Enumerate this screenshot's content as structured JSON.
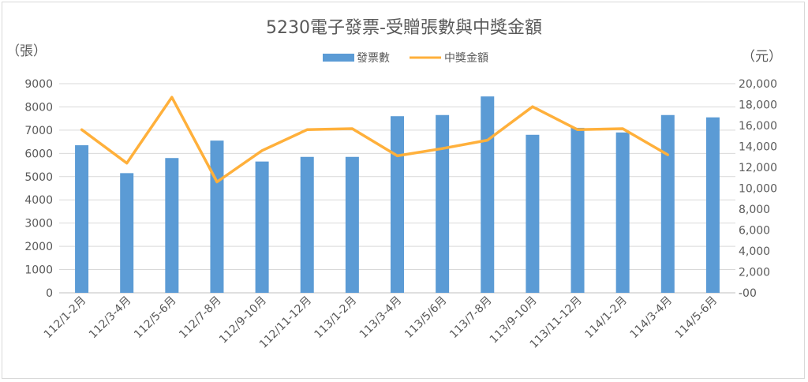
{
  "chart_data": {
    "type": "bar",
    "title": "5230電子發票-受贈張數與中獎金額",
    "y_left_label": "（張）",
    "y_right_label": "（元）",
    "categories": [
      "112/1-2月",
      "112/3-4月",
      "112/5-6月",
      "112/7-8月",
      "112/9-10月",
      "112/11-12月",
      "113/1-2月",
      "113/3-4月",
      "113/5/6月",
      "113/7-8月",
      "113/9-10月",
      "113/11-12月",
      "114/1-2月",
      "114/3-4月",
      "114/5-6月"
    ],
    "series": [
      {
        "name": "發票數",
        "type": "bar",
        "axis": "left",
        "color": "#5b9bd5",
        "values": [
          6350,
          5150,
          5800,
          6550,
          5650,
          5850,
          5850,
          7600,
          7650,
          8450,
          6800,
          7100,
          6900,
          7650,
          7550
        ]
      },
      {
        "name": "中獎金額",
        "type": "line",
        "axis": "right",
        "color": "#ffb03b",
        "values": [
          15600,
          12400,
          18700,
          10600,
          13600,
          15600,
          15700,
          13100,
          13800,
          14600,
          17800,
          15600,
          15700,
          13200,
          null
        ]
      }
    ],
    "y_left": {
      "min": 0,
      "max": 9000,
      "ticks": [
        "0",
        "1000",
        "2000",
        "3000",
        "4000",
        "5000",
        "6000",
        "7000",
        "8000",
        "9000"
      ]
    },
    "y_right": {
      "min": 0,
      "max": 20000,
      "ticks": [
        "-00",
        "2,000",
        "4,000",
        "6,000",
        "8,000",
        "10,000",
        "12,000",
        "14,000",
        "16,000",
        "18,000",
        "20,000"
      ]
    },
    "grid": true,
    "legend_position": "top"
  }
}
